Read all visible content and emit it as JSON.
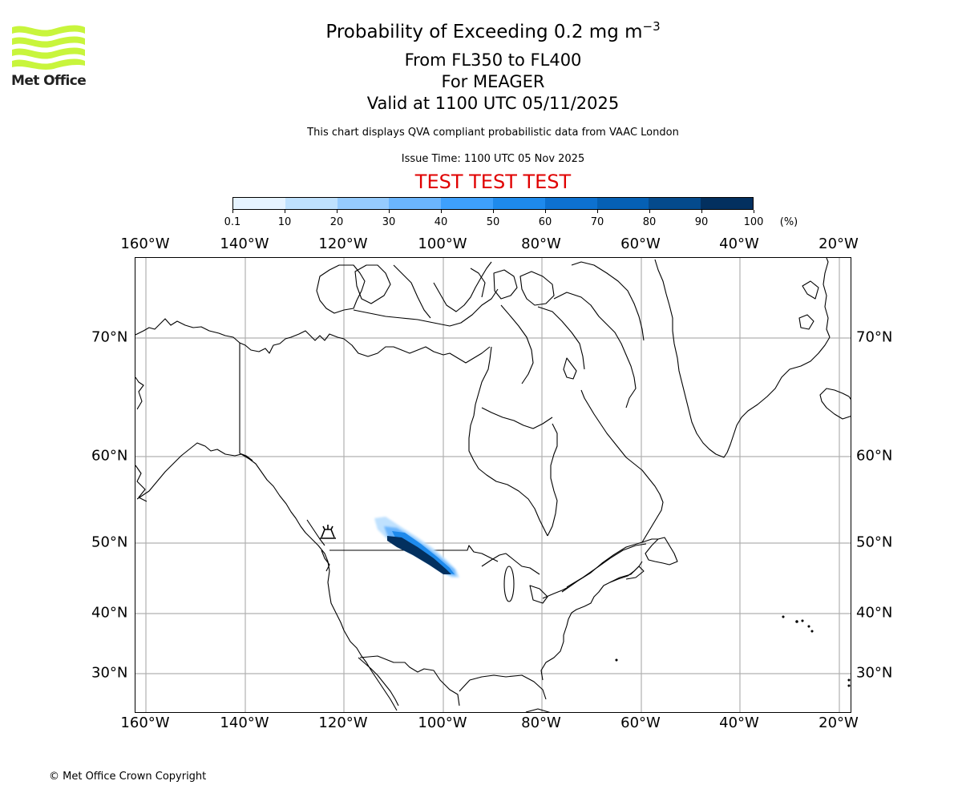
{
  "header": {
    "title_main": "Probability of Exceeding 0.2 mg m",
    "title_superscript": "−3",
    "level_range": "From FL350 to FL400",
    "volcano": "For MEAGER",
    "valid_time": "Valid at 1100 UTC 05/11/2025",
    "description": "This chart displays QVA compliant probabilistic data from VAAC London",
    "issue_time": "Issue Time: 1100 UTC 05 Nov 2025",
    "test_banner": "TEST TEST TEST"
  },
  "logo": {
    "text": "Met Office",
    "color": "#c8f53c"
  },
  "colorbar": {
    "ticks": [
      "0.1",
      "10",
      "20",
      "30",
      "40",
      "50",
      "60",
      "70",
      "80",
      "90",
      "100"
    ],
    "unit": "(%)",
    "colors": [
      "#e6f3ff",
      "#bfe1fe",
      "#96cbfe",
      "#6bb5fd",
      "#3ea0fc",
      "#1e8aec",
      "#0d71d0",
      "#0560b4",
      "#044a8c",
      "#03305f"
    ]
  },
  "map": {
    "lon_labels": [
      "160°W",
      "140°W",
      "120°W",
      "100°W",
      "80°W",
      "60°W",
      "40°W",
      "20°W"
    ],
    "lat_labels": [
      "70°N",
      "60°N",
      "50°N",
      "40°N",
      "30°N"
    ],
    "volcano_marker": "volcano-icon",
    "gridline_color": "#b0b0b0"
  },
  "chart_data": {
    "type": "heatmap",
    "title": "Probability of Exceeding 0.2 mg m−3, From FL350 to FL400, For MEAGER, Valid at 1100 UTC 05/11/2025",
    "xlabel": "Longitude",
    "ylabel": "Latitude",
    "x_ticks": [
      "160°W",
      "140°W",
      "120°W",
      "100°W",
      "80°W",
      "60°W",
      "40°W",
      "20°W"
    ],
    "y_ticks": [
      "30°N",
      "40°N",
      "50°N",
      "60°N",
      "70°N"
    ],
    "xlim": [
      -162,
      -18
    ],
    "ylim": [
      24,
      78
    ],
    "grid": true,
    "colorbar_levels": [
      0.1,
      10,
      20,
      30,
      40,
      50,
      60,
      70,
      80,
      90,
      100
    ],
    "colorbar_unit": "%",
    "source_volcano": {
      "name": "MEAGER",
      "lon": -123.5,
      "lat": 50.6
    },
    "plume": {
      "description": "Elongated NW-SE ash plume over southern Saskatchewan/Manitoba into North Dakota/Minnesota",
      "extent_lon": [
        -113,
        -97
      ],
      "extent_lat": [
        45.5,
        53.5
      ],
      "core_probability_max": 100,
      "core_extent_lon": [
        -111,
        -98
      ],
      "core_extent_lat": [
        46,
        51
      ]
    }
  },
  "footer": {
    "copyright": "© Met Office Crown Copyright"
  }
}
